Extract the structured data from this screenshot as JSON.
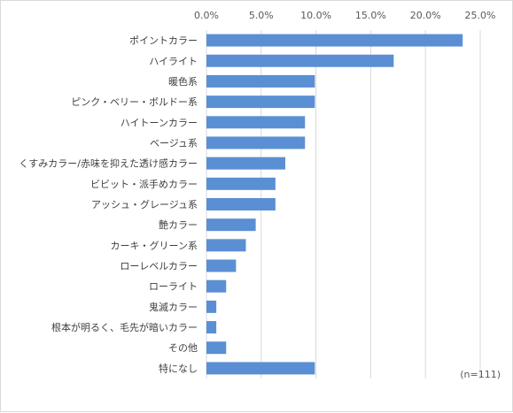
{
  "chart_data": {
    "type": "bar",
    "orientation": "horizontal",
    "categories": [
      "ポイントカラー",
      "ハイライト",
      "暖色系",
      "ピンク・ベリー・ボルドー系",
      "ハイトーンカラー",
      "ベージュ系",
      "くすみカラー/赤味を抑えた透け感カラー",
      "ビビット・派手めカラー",
      "アッシュ・グレージュ系",
      "艶カラー",
      "カーキ・グリーン系",
      "ローレベルカラー",
      "ローライト",
      "鬼滅カラー",
      "根本が明るく、毛先が暗いカラー",
      "その他",
      "特になし"
    ],
    "values": [
      23.4,
      17.1,
      9.9,
      9.9,
      9.0,
      9.0,
      7.2,
      6.3,
      6.3,
      4.5,
      3.6,
      2.7,
      1.8,
      0.9,
      0.9,
      1.8,
      9.9
    ],
    "xlim": [
      0,
      25
    ],
    "xticks": [
      "0.0%",
      "5.0%",
      "10.0%",
      "15.0%",
      "20.0%",
      "25.0%"
    ],
    "xtick_values": [
      0,
      5,
      10,
      15,
      20,
      25
    ],
    "grid": true,
    "x_axis_position": "top",
    "note": "(n=111)",
    "bar_color": "#5b8fd4",
    "grid_color": "#d9d9d9"
  }
}
